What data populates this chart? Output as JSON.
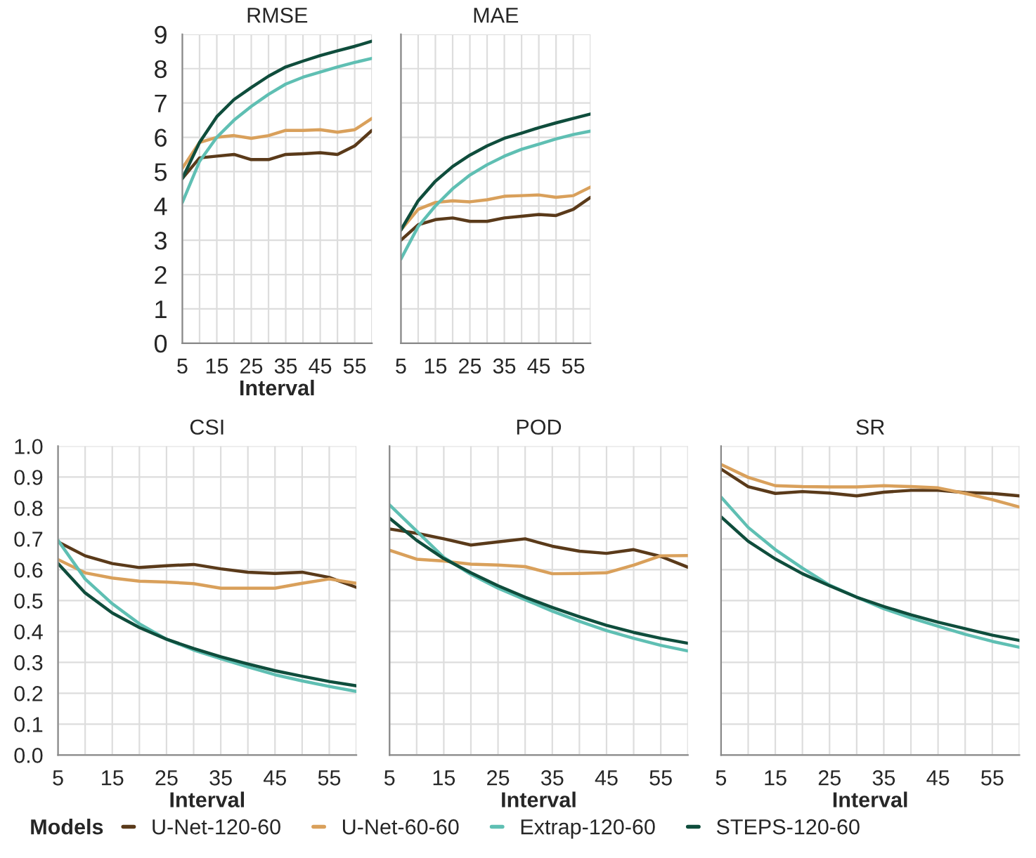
{
  "chart_data": [
    {
      "type": "line",
      "title": "RMSE",
      "xlabel": "Interval",
      "legend": "bottom",
      "legend_title": "Models",
      "grid": true,
      "x": [
        5,
        10,
        15,
        20,
        25,
        30,
        35,
        40,
        45,
        50,
        55,
        60
      ],
      "xlim": [
        5,
        60
      ],
      "xticks": [
        5,
        {
          "value": 10,
          "label": null
        },
        15,
        {
          "value": 20,
          "label": null
        },
        25,
        {
          "value": 30,
          "label": null
        },
        35,
        {
          "value": 40,
          "label": null
        },
        45,
        {
          "value": 50,
          "label": null
        },
        55,
        {
          "value": 60,
          "label": null
        }
      ],
      "ylim": [
        0,
        9
      ],
      "yticks": [
        0,
        1,
        2,
        3,
        4,
        5,
        6,
        7,
        8,
        9
      ],
      "series": [
        {
          "name": "U-Net-120-60",
          "color": "#5a3a1a",
          "values": [
            4.8,
            5.4,
            5.45,
            5.5,
            5.35,
            5.35,
            5.5,
            5.52,
            5.55,
            5.5,
            5.75,
            6.2
          ]
        },
        {
          "name": "U-Net-60-60",
          "color": "#d9a05b",
          "values": [
            5.1,
            5.85,
            6.0,
            6.05,
            5.97,
            6.05,
            6.2,
            6.2,
            6.22,
            6.15,
            6.22,
            6.55
          ]
        },
        {
          "name": "Extrap-120-60",
          "color": "#5fbfb3",
          "values": [
            4.1,
            5.3,
            6.0,
            6.5,
            6.9,
            7.25,
            7.55,
            7.75,
            7.9,
            8.05,
            8.18,
            8.3
          ]
        },
        {
          "name": "STEPS-120-60",
          "color": "#0f4d3c",
          "values": [
            4.8,
            5.85,
            6.6,
            7.1,
            7.45,
            7.78,
            8.05,
            8.22,
            8.38,
            8.52,
            8.65,
            8.8
          ]
        }
      ]
    },
    {
      "type": "line",
      "title": "MAE",
      "tick_labels": "x",
      "grid": true,
      "x": [
        5,
        10,
        15,
        20,
        25,
        30,
        35,
        40,
        45,
        50,
        55,
        60
      ],
      "xlim": [
        5,
        60
      ],
      "xticks": [
        5,
        {
          "value": 10,
          "label": null
        },
        15,
        {
          "value": 20,
          "label": null
        },
        25,
        {
          "value": 30,
          "label": null
        },
        35,
        {
          "value": 40,
          "label": null
        },
        45,
        {
          "value": 50,
          "label": null
        },
        55,
        {
          "value": 60,
          "label": null
        }
      ],
      "ylim": [
        0,
        9
      ],
      "yticks": [
        0,
        1,
        2,
        3,
        4,
        5,
        6,
        7,
        8,
        9
      ],
      "series": [
        {
          "color": "#5a3a1a",
          "values": [
            3.0,
            3.45,
            3.6,
            3.65,
            3.55,
            3.55,
            3.65,
            3.7,
            3.75,
            3.72,
            3.9,
            4.25
          ]
        },
        {
          "color": "#d9a05b",
          "values": [
            3.3,
            3.9,
            4.1,
            4.15,
            4.12,
            4.18,
            4.28,
            4.3,
            4.32,
            4.25,
            4.3,
            4.55
          ]
        },
        {
          "color": "#5fbfb3",
          "values": [
            2.45,
            3.4,
            4.0,
            4.5,
            4.9,
            5.2,
            5.45,
            5.65,
            5.8,
            5.95,
            6.08,
            6.18
          ]
        },
        {
          "color": "#0f4d3c",
          "values": [
            3.3,
            4.15,
            4.72,
            5.15,
            5.48,
            5.75,
            5.97,
            6.12,
            6.28,
            6.42,
            6.55,
            6.68
          ]
        }
      ]
    },
    {
      "type": "line",
      "title": "CSI",
      "xlabel": "Interval",
      "grid": true,
      "x": [
        5,
        10,
        15,
        20,
        25,
        30,
        35,
        40,
        45,
        50,
        55,
        60
      ],
      "xlim": [
        5,
        60
      ],
      "xticks": [
        5,
        {
          "value": 10,
          "label": null
        },
        15,
        {
          "value": 20,
          "label": null
        },
        25,
        {
          "value": 30,
          "label": null
        },
        35,
        {
          "value": 40,
          "label": null
        },
        45,
        {
          "value": 50,
          "label": null
        },
        55,
        {
          "value": 60,
          "label": null
        }
      ],
      "ylim": [
        0,
        1
      ],
      "yticks": [
        {
          "value": 0,
          "label": "0.0"
        },
        0.1,
        0.2,
        0.3,
        0.4,
        0.5,
        0.6,
        0.7,
        0.8,
        0.9,
        {
          "value": 1,
          "label": "1.0"
        }
      ],
      "series": [
        {
          "color": "#5a3a1a",
          "values": [
            0.69,
            0.645,
            0.62,
            0.607,
            0.613,
            0.617,
            0.603,
            0.592,
            0.588,
            0.592,
            0.575,
            0.543
          ]
        },
        {
          "color": "#d9a05b",
          "values": [
            0.633,
            0.59,
            0.573,
            0.563,
            0.56,
            0.555,
            0.54,
            0.54,
            0.54,
            0.556,
            0.57,
            0.556
          ]
        },
        {
          "color": "#5fbfb3",
          "values": [
            0.695,
            0.57,
            0.49,
            0.425,
            0.375,
            0.34,
            0.312,
            0.285,
            0.26,
            0.24,
            0.222,
            0.206
          ]
        },
        {
          "color": "#0f4d3c",
          "values": [
            0.62,
            0.525,
            0.46,
            0.413,
            0.375,
            0.345,
            0.318,
            0.295,
            0.273,
            0.255,
            0.238,
            0.224
          ]
        }
      ]
    },
    {
      "type": "line",
      "title": "POD",
      "xlabel": "Interval",
      "tick_labels": "x",
      "grid": true,
      "x": [
        5,
        10,
        15,
        20,
        25,
        30,
        35,
        40,
        45,
        50,
        55,
        60
      ],
      "xlim": [
        5,
        60
      ],
      "xticks": [
        5,
        {
          "value": 10,
          "label": null
        },
        15,
        {
          "value": 20,
          "label": null
        },
        25,
        {
          "value": 30,
          "label": null
        },
        35,
        {
          "value": 40,
          "label": null
        },
        45,
        {
          "value": 50,
          "label": null
        },
        55,
        {
          "value": 60,
          "label": null
        }
      ],
      "ylim": [
        0,
        1
      ],
      "yticks": [
        0,
        0.1,
        0.2,
        0.3,
        0.4,
        0.5,
        0.6,
        0.7,
        0.8,
        0.9,
        1
      ],
      "series": [
        {
          "color": "#5a3a1a",
          "values": [
            0.732,
            0.718,
            0.7,
            0.68,
            0.69,
            0.7,
            0.676,
            0.66,
            0.653,
            0.665,
            0.643,
            0.608
          ]
        },
        {
          "color": "#d9a05b",
          "values": [
            0.663,
            0.634,
            0.628,
            0.618,
            0.615,
            0.61,
            0.587,
            0.588,
            0.59,
            0.615,
            0.645,
            0.646
          ]
        },
        {
          "color": "#5fbfb3",
          "values": [
            0.81,
            0.725,
            0.64,
            0.585,
            0.54,
            0.503,
            0.466,
            0.433,
            0.403,
            0.378,
            0.355,
            0.337
          ]
        },
        {
          "color": "#0f4d3c",
          "values": [
            0.767,
            0.695,
            0.636,
            0.59,
            0.548,
            0.511,
            0.478,
            0.448,
            0.42,
            0.397,
            0.378,
            0.362
          ]
        }
      ]
    },
    {
      "type": "line",
      "title": "SR",
      "xlabel": "Interval",
      "tick_labels": "x",
      "grid": true,
      "x": [
        5,
        10,
        15,
        20,
        25,
        30,
        35,
        40,
        45,
        50,
        55,
        60
      ],
      "xlim": [
        5,
        60
      ],
      "xticks": [
        5,
        {
          "value": 10,
          "label": null
        },
        15,
        {
          "value": 20,
          "label": null
        },
        25,
        {
          "value": 30,
          "label": null
        },
        35,
        {
          "value": 40,
          "label": null
        },
        45,
        {
          "value": 50,
          "label": null
        },
        55,
        {
          "value": 60,
          "label": null
        }
      ],
      "ylim": [
        0,
        1
      ],
      "yticks": [
        0,
        0.1,
        0.2,
        0.3,
        0.4,
        0.5,
        0.6,
        0.7,
        0.8,
        0.9,
        1
      ],
      "series": [
        {
          "color": "#5a3a1a",
          "values": [
            0.926,
            0.869,
            0.847,
            0.853,
            0.848,
            0.839,
            0.851,
            0.857,
            0.857,
            0.85,
            0.847,
            0.839
          ]
        },
        {
          "color": "#d9a05b",
          "values": [
            0.941,
            0.899,
            0.872,
            0.869,
            0.868,
            0.868,
            0.872,
            0.869,
            0.865,
            0.847,
            0.827,
            0.803
          ]
        },
        {
          "color": "#5fbfb3",
          "values": [
            0.835,
            0.737,
            0.665,
            0.605,
            0.55,
            0.511,
            0.474,
            0.444,
            0.417,
            0.391,
            0.368,
            0.349
          ]
        },
        {
          "color": "#0f4d3c",
          "values": [
            0.771,
            0.692,
            0.635,
            0.587,
            0.548,
            0.511,
            0.481,
            0.454,
            0.43,
            0.409,
            0.388,
            0.371
          ]
        }
      ]
    }
  ]
}
